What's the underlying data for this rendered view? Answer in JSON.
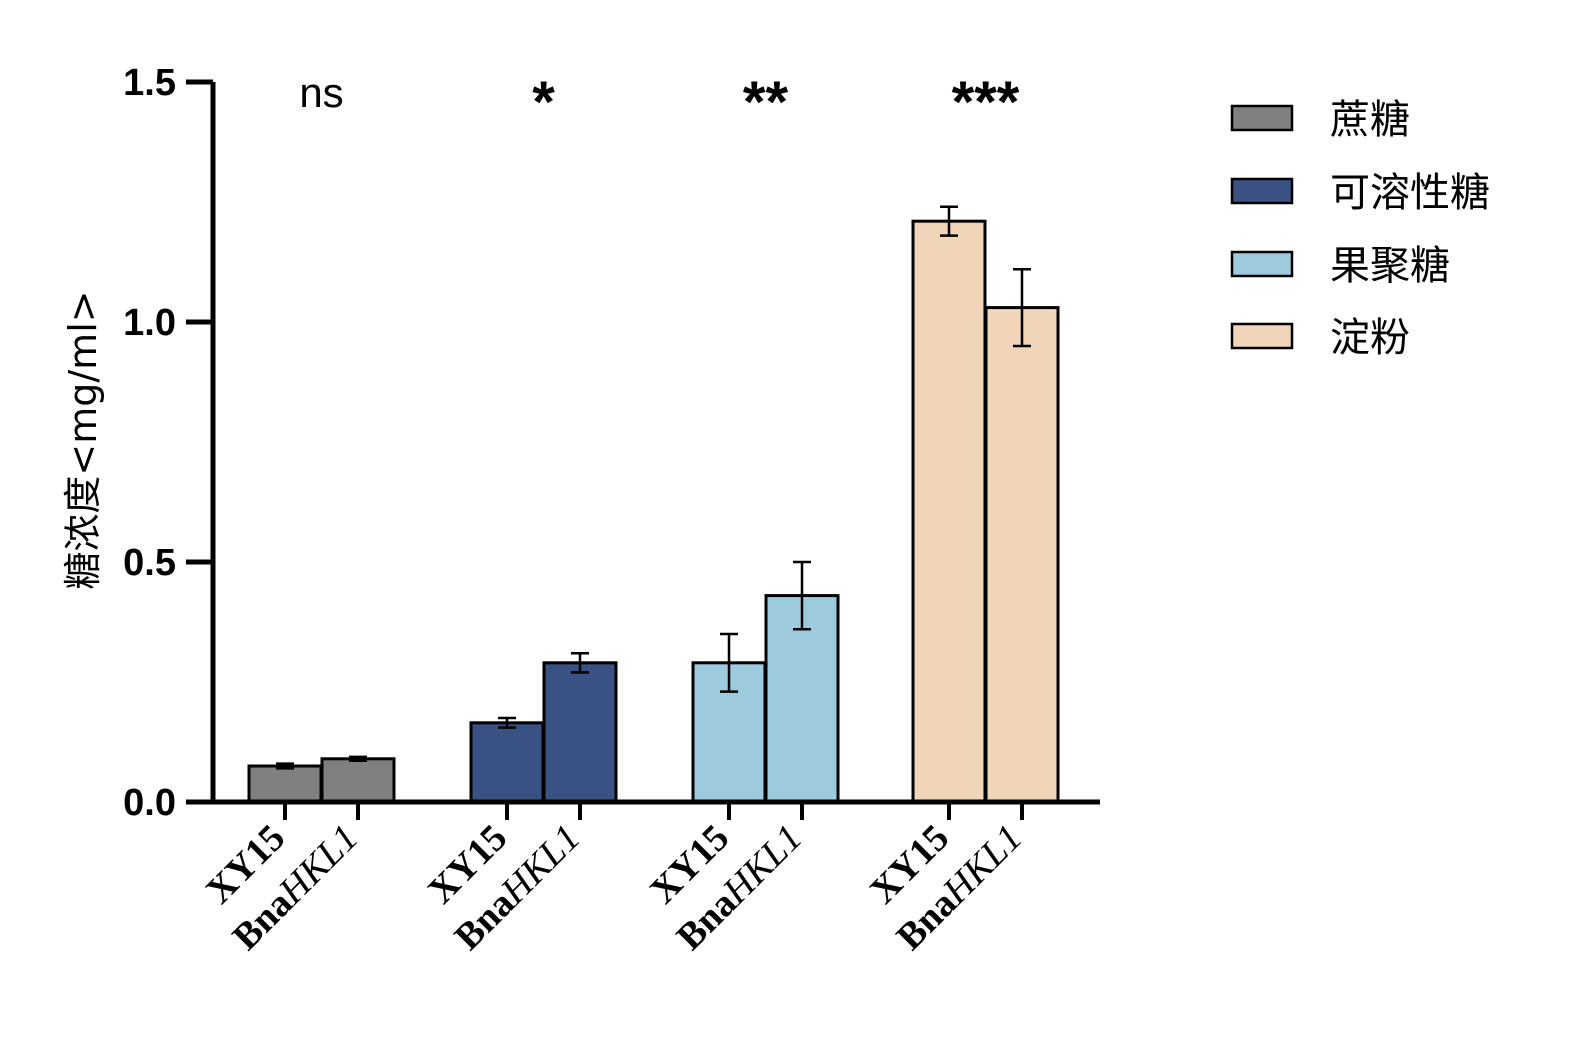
{
  "chart_data": {
    "type": "bar",
    "title": "",
    "xlabel": "",
    "ylabel": "糖浓度<mg/ml>",
    "ylim": [
      0,
      1.5
    ],
    "yticks": [
      "0.0",
      "0.5",
      "1.0",
      "1.5"
    ],
    "ytick_values": [
      0,
      0.5,
      1.0,
      1.5
    ],
    "legend_position": "top-right",
    "groups": [
      "蔗糖",
      "可溶性糖",
      "果聚糖",
      "淀粉"
    ],
    "categories": [
      "XY15",
      "BnaHKL1"
    ],
    "category_labels": [
      {
        "prefix": "XY15",
        "italic": ""
      },
      {
        "prefix": "Bna",
        "italic": "HKL1"
      }
    ],
    "series": [
      {
        "name": "蔗糖",
        "color": "#808080",
        "values": [
          0.075,
          0.09
        ],
        "errors": [
          0.005,
          0.004
        ],
        "significance": "ns"
      },
      {
        "name": "可溶性糖",
        "color": "#3a5183",
        "values": [
          0.165,
          0.29
        ],
        "errors": [
          0.01,
          0.02
        ],
        "significance": "*"
      },
      {
        "name": "果聚糖",
        "color": "#9ecade",
        "values": [
          0.29,
          0.43
        ],
        "errors": [
          0.06,
          0.07
        ],
        "significance": "**"
      },
      {
        "name": "淀粉",
        "color": "#f0d5b8",
        "values": [
          1.21,
          1.03
        ],
        "errors": [
          0.03,
          0.08
        ],
        "significance": "***"
      }
    ]
  }
}
